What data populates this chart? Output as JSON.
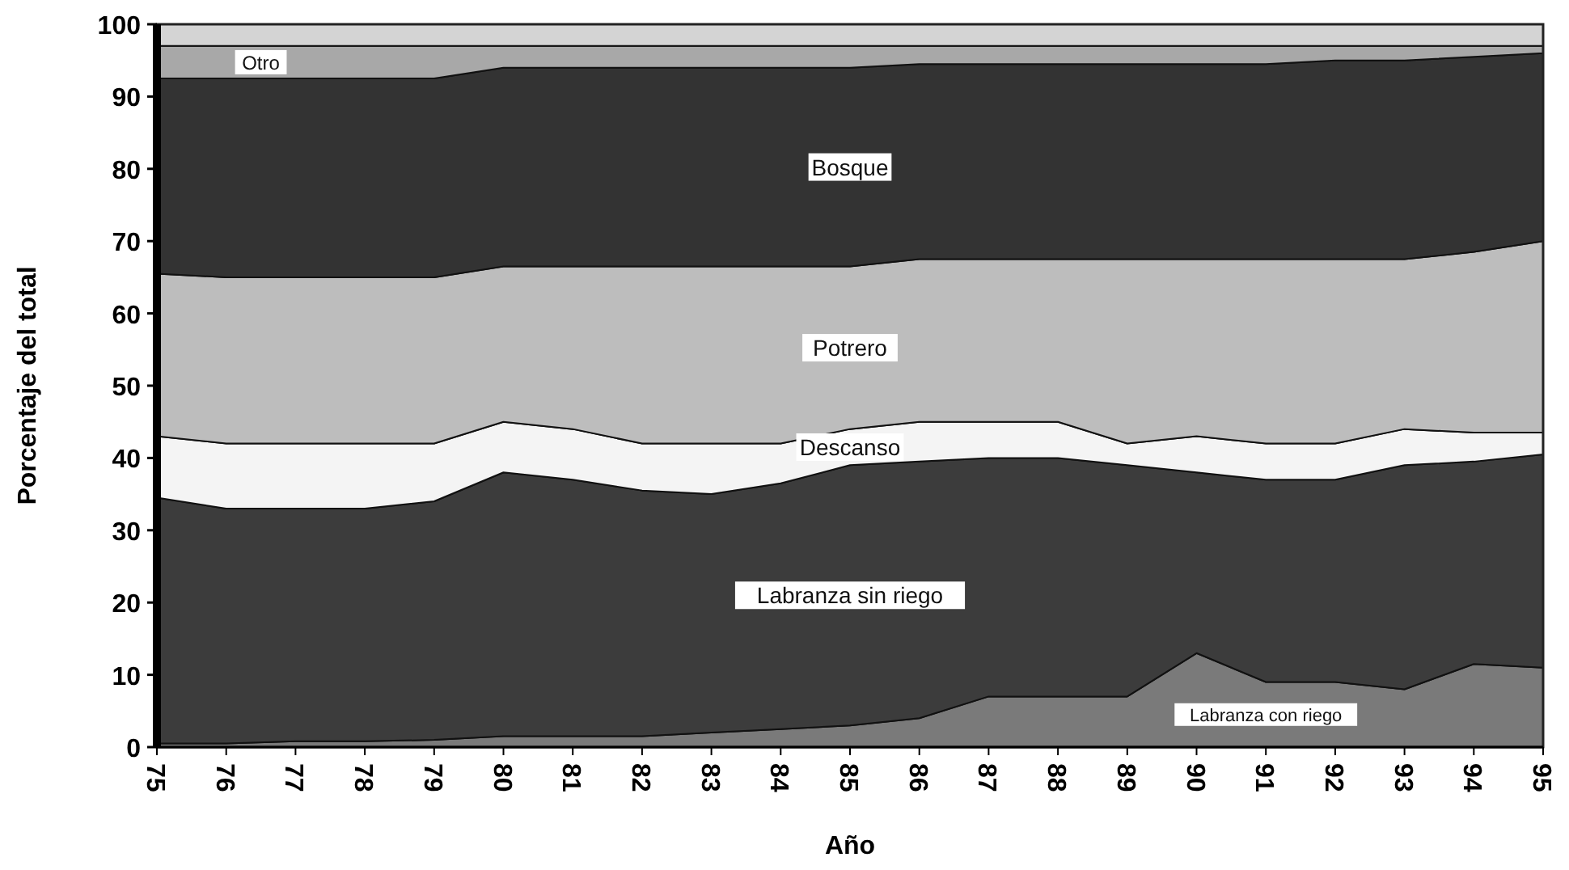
{
  "chart_data": {
    "type": "area",
    "stacked": true,
    "xlabel": "Año",
    "ylabel": "Porcentaje del total",
    "categories": [
      "75",
      "76",
      "77",
      "78",
      "79",
      "80",
      "81",
      "82",
      "83",
      "84",
      "85",
      "86",
      "87",
      "88",
      "89",
      "90",
      "91",
      "92",
      "93",
      "94",
      "95"
    ],
    "ylim": [
      0,
      100
    ],
    "yticks": [
      0,
      10,
      20,
      30,
      40,
      50,
      60,
      70,
      80,
      90,
      100
    ],
    "series": [
      {
        "name": "Labranza con riego",
        "color": "#7a7a7a",
        "values": [
          0.5,
          0.5,
          0.8,
          0.8,
          1,
          1.5,
          1.5,
          1.5,
          2,
          2.5,
          3,
          4,
          7,
          7,
          7,
          13,
          9,
          9,
          8,
          11.5,
          11
        ]
      },
      {
        "name": "Labranza sin riego",
        "color": "#3c3c3c",
        "values": [
          34,
          32.5,
          32.2,
          32.2,
          33,
          36.5,
          35.5,
          34,
          33,
          34,
          36,
          35.5,
          33,
          33,
          32,
          25,
          28,
          28,
          31,
          28,
          29.5
        ]
      },
      {
        "name": "Descanso",
        "color": "#f4f4f4",
        "values": [
          8.5,
          9,
          9,
          9,
          8,
          7,
          7,
          6.5,
          7,
          5.5,
          5,
          5.5,
          5,
          5,
          3,
          5,
          5,
          5,
          5,
          4,
          3
        ]
      },
      {
        "name": "Potrero",
        "color": "#bdbdbd",
        "values": [
          22.5,
          23,
          23,
          23,
          23,
          21.5,
          22.5,
          24.5,
          24.5,
          24.5,
          22.5,
          22.5,
          22.5,
          22.5,
          25.5,
          24.5,
          25.5,
          25.5,
          23.5,
          25,
          26.5
        ]
      },
      {
        "name": "Bosque",
        "color": "#333333",
        "values": [
          27,
          27.5,
          27.5,
          27.5,
          27.5,
          27.5,
          27.5,
          27.5,
          27.5,
          27.5,
          27.5,
          27,
          27,
          27,
          27,
          27,
          27,
          27.5,
          27.5,
          27,
          26
        ]
      },
      {
        "name": "Otro",
        "color": "#a8a8a8",
        "values": [
          4.5,
          4.5,
          4.5,
          4.5,
          4.5,
          3,
          3,
          3,
          3,
          3,
          3,
          2.5,
          2.5,
          2.5,
          2.5,
          2.5,
          2.5,
          2,
          2,
          1.5,
          1
        ]
      },
      {
        "color": "#d4d4d4",
        "values": [
          3,
          3,
          3,
          3,
          3,
          3,
          3,
          3,
          3,
          3,
          3,
          3,
          3,
          3,
          3,
          3,
          3,
          3,
          3,
          3,
          3
        ]
      }
    ]
  }
}
